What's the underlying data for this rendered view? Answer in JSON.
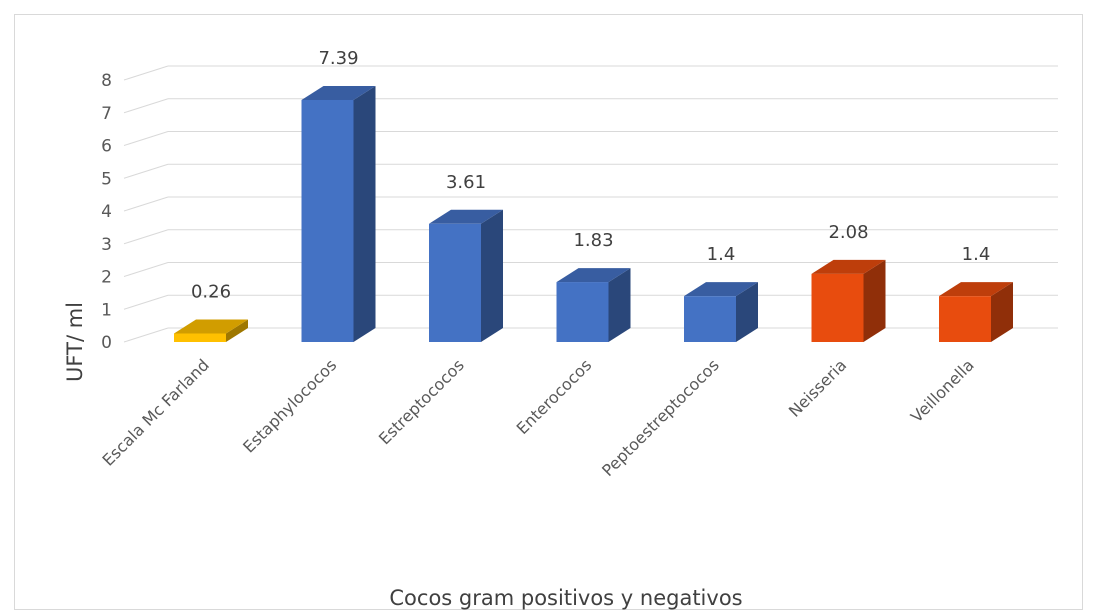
{
  "chart_data": {
    "type": "bar",
    "categories": [
      "Escala Mc Farland",
      "Estaphylococos",
      "Estreptococos",
      "Enterococos",
      "Peptoestreptococos",
      "Neisseria",
      "Veillonella"
    ],
    "values": [
      0.26,
      7.39,
      3.61,
      1.83,
      1.4,
      2.08,
      1.4
    ],
    "data_labels": [
      "0.26",
      "7.39",
      "3.61",
      "1.83",
      "1.4",
      "2.08",
      "1.4"
    ],
    "bar_colors": [
      "#ffc000",
      "#4472c4",
      "#4472c4",
      "#4472c4",
      "#4472c4",
      "#e84c0e",
      "#e84c0e"
    ],
    "title": "",
    "xlabel": "Cocos gram positivos y negativos",
    "ylabel": "UFT/ ml",
    "ylim": [
      0,
      8
    ],
    "yticks": [
      "0",
      "1",
      "2",
      "3",
      "4",
      "5",
      "6",
      "7",
      "8"
    ],
    "grid": true,
    "style": "3d-column",
    "legend": "none"
  }
}
